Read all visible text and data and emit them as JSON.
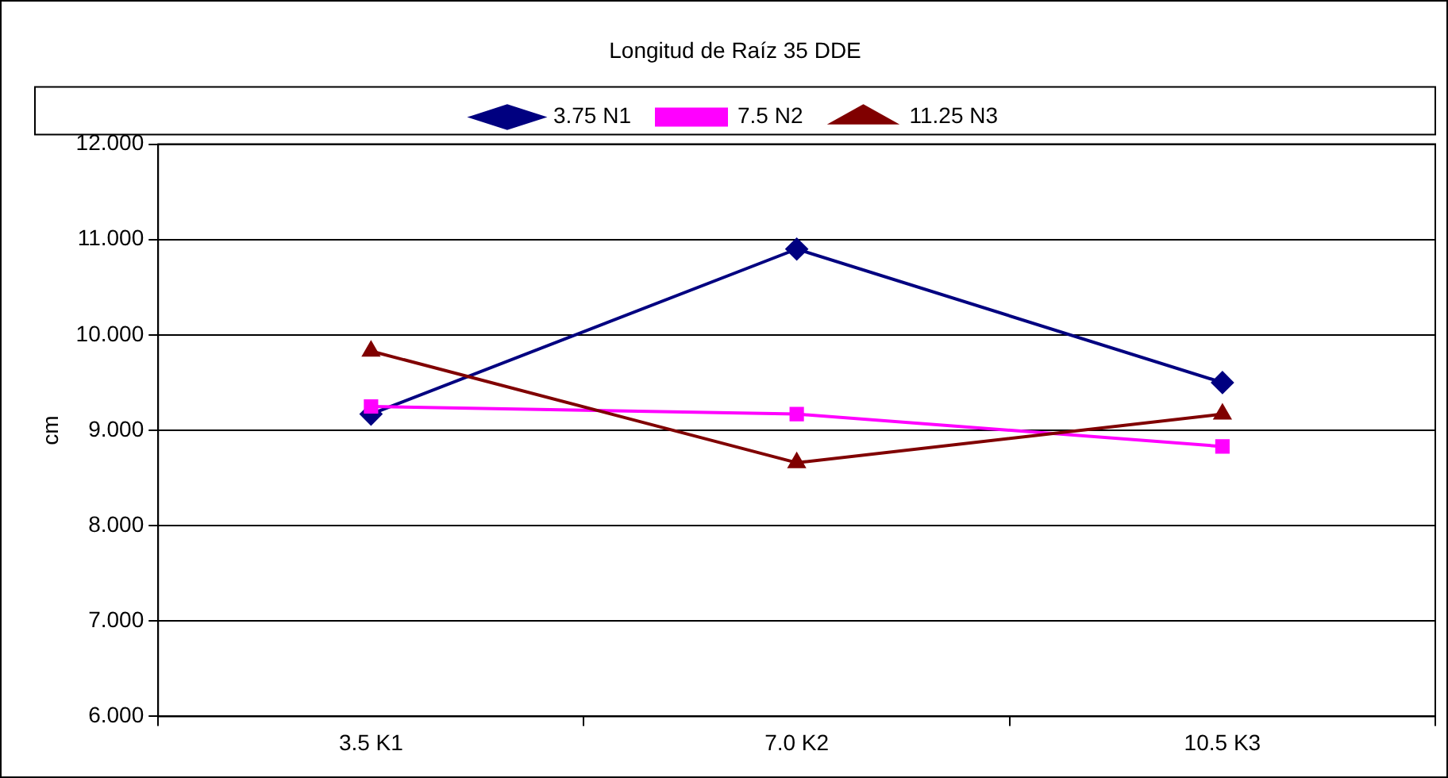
{
  "chart_data": {
    "type": "line",
    "title": "Longitud de Raíz 35 DDE",
    "ylabel": "cm",
    "categories": [
      "3.5 K1",
      "7.0 K2",
      "10.5 K3"
    ],
    "series": [
      {
        "name": "3.75 N1",
        "color": "#000080",
        "marker": "diamond",
        "values": [
          9.17,
          10.9,
          9.5
        ]
      },
      {
        "name": "7.5 N2",
        "color": "#ff00ff",
        "marker": "square",
        "values": [
          9.25,
          9.17,
          8.83
        ]
      },
      {
        "name": "11.25 N3",
        "color": "#800000",
        "marker": "triangle",
        "values": [
          9.83,
          8.66,
          9.17
        ]
      }
    ],
    "ylim": [
      6,
      12
    ],
    "yticks": [
      {
        "value": 6,
        "label": "6.000"
      },
      {
        "value": 7,
        "label": "7.000"
      },
      {
        "value": 8,
        "label": "8.000"
      },
      {
        "value": 9,
        "label": "9.000"
      },
      {
        "value": 10,
        "label": "10.000"
      },
      {
        "value": 11,
        "label": "11.000"
      },
      {
        "value": 12,
        "label": "12.000"
      }
    ],
    "grid": "y",
    "legend": "top",
    "line_style": "solid"
  }
}
